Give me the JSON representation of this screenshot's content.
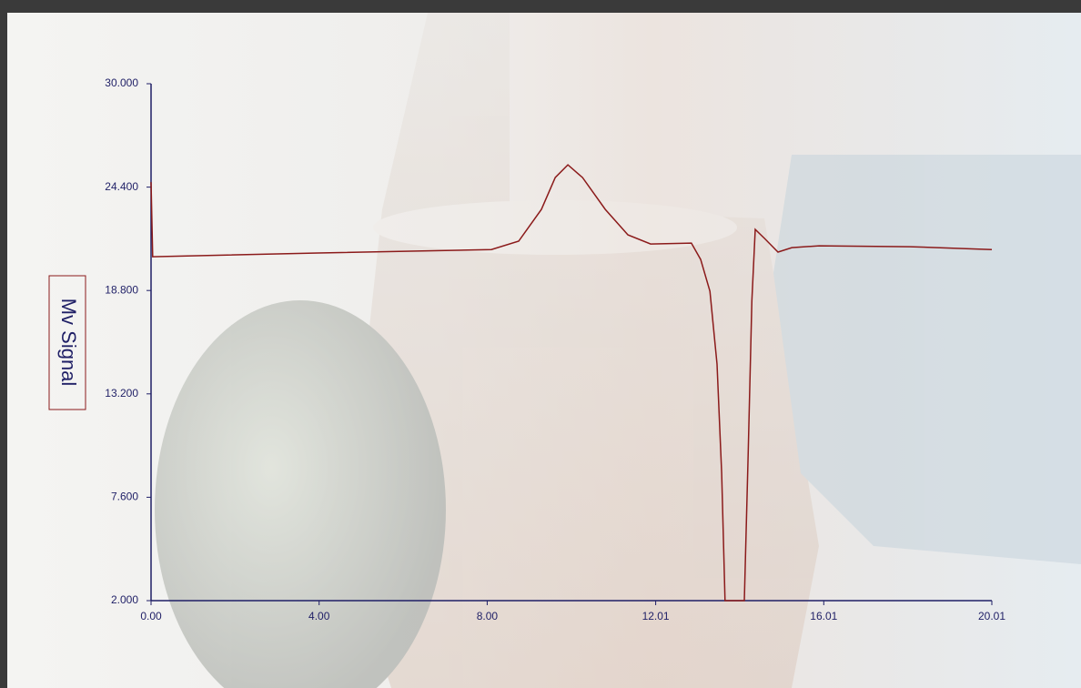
{
  "chart_data": {
    "type": "line",
    "y_label": "Mv Signal",
    "x": [
      0,
      0.04,
      3.98,
      8.1,
      8.75,
      9.29,
      9.62,
      9.92,
      10.27,
      10.81,
      11.35,
      11.89,
      12.86,
      13.08,
      13.3,
      13.47,
      13.58,
      13.66,
      14.12,
      14.21,
      14.3,
      14.38,
      14.6,
      14.92,
      15.25,
      15.9,
      18.06,
      20.01
    ],
    "series": [
      {
        "color": "#8b1a1a",
        "values": [
          24.67,
          20.63,
          20.83,
          21.02,
          21.47,
          23.19,
          24.92,
          25.61,
          24.92,
          23.19,
          21.81,
          21.32,
          21.37,
          20.48,
          18.76,
          14.81,
          8.9,
          2.0,
          2.0,
          9.89,
          18.26,
          22.11,
          21.62,
          20.88,
          21.12,
          21.22,
          21.17,
          21.02
        ]
      }
    ],
    "axis_color": "#1f1f66",
    "xlim": [
      0,
      20.01
    ],
    "ylim": [
      2,
      30
    ],
    "xticks": [
      {
        "value": 0,
        "label": "0.00"
      },
      {
        "value": 4,
        "label": "4.00"
      },
      {
        "value": 8,
        "label": "8.00"
      },
      {
        "value": 12.01,
        "label": "12.01"
      },
      {
        "value": 16.01,
        "label": "16.01"
      },
      {
        "value": 20.01,
        "label": "20.01"
      }
    ],
    "yticks": [
      {
        "value": 2,
        "label": "2.000"
      },
      {
        "value": 7.6,
        "label": "7.600"
      },
      {
        "value": 13.2,
        "label": "13.200"
      },
      {
        "value": 18.8,
        "label": "18.800"
      },
      {
        "value": 24.4,
        "label": "24.400"
      },
      {
        "value": 30,
        "label": "30.000"
      }
    ]
  }
}
